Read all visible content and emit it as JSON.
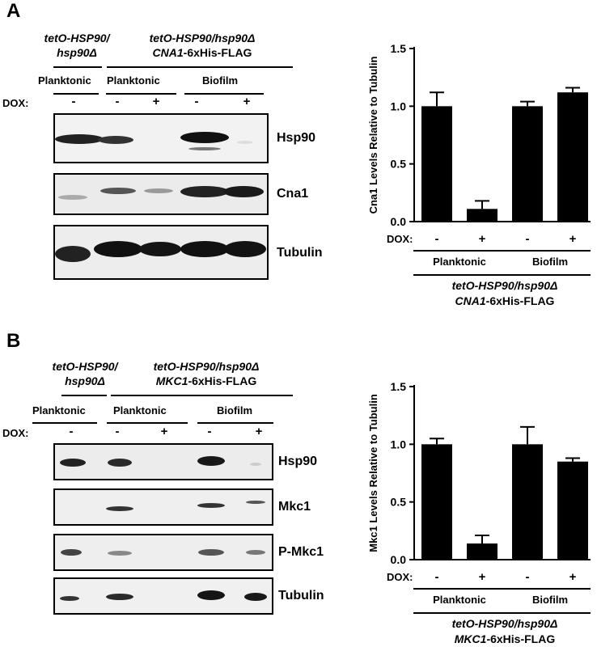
{
  "panel_a": {
    "letter": "A",
    "header_left_1": "tetO-HSP90/",
    "header_left_2": "hsp90Δ",
    "header_right_1": "tetO-HSP90/hsp90Δ",
    "header_right_2_gene": "CNA1",
    "header_right_2_rest": "-6xHis-FLAG",
    "cond_1": "Planktonic",
    "cond_2": "Planktonic",
    "cond_3": "Biofilm",
    "dox_label": "DOX:",
    "signs": [
      "-",
      "-",
      "+",
      "-",
      "+"
    ],
    "blots": [
      "Hsp90",
      "Cna1",
      "Tubulin"
    ]
  },
  "panel_b": {
    "letter": "B",
    "header_left_1": "tetO-HSP90/",
    "header_left_2": "hsp90Δ",
    "header_right_1": "tetO-HSP90/hsp90Δ",
    "header_right_2_gene": "MKC1",
    "header_right_2_rest": "-6xHis-FLAG",
    "cond_1": "Planktonic",
    "cond_2": "Planktonic",
    "cond_3": "Biofilm",
    "dox_label": "DOX:",
    "signs": [
      "-",
      "-",
      "+",
      "-",
      "+"
    ],
    "blots": [
      "Hsp90",
      "Mkc1",
      "P-Mkc1",
      "Tubulin"
    ]
  },
  "chart_data": [
    {
      "type": "bar",
      "ylabel": "Cna1 Levels Relative to Tubulin",
      "ylim": [
        0,
        1.5
      ],
      "yticks": [
        "0.0",
        "0.5",
        "1.0",
        "1.5"
      ],
      "dox_label": "DOX:",
      "dox_signs": [
        "-",
        "+",
        "-",
        "+"
      ],
      "groups": [
        "Planktonic",
        "Biofilm"
      ],
      "strain_1": "tetO-HSP90/hsp90Δ",
      "strain_2_gene": "CNA1",
      "strain_2_rest": "-6xHis-FLAG",
      "values": [
        1.0,
        0.11,
        1.0,
        1.12
      ],
      "errors": [
        0.12,
        0.07,
        0.04,
        0.04
      ],
      "bar_color": "#000000"
    },
    {
      "type": "bar",
      "ylabel": "Mkc1 Levels Relative to Tubulin",
      "ylim": [
        0,
        1.5
      ],
      "yticks": [
        "0.0",
        "0.5",
        "1.0",
        "1.5"
      ],
      "dox_label": "DOX:",
      "dox_signs": [
        "-",
        "+",
        "-",
        "+"
      ],
      "groups": [
        "Planktonic",
        "Biofilm"
      ],
      "strain_1": "tetO-HSP90/hsp90Δ",
      "strain_2_gene": "MKC1",
      "strain_2_rest": "-6xHis-FLAG",
      "values": [
        1.0,
        0.14,
        1.0,
        0.85
      ],
      "errors": [
        0.05,
        0.07,
        0.15,
        0.03
      ],
      "bar_color": "#000000"
    }
  ]
}
